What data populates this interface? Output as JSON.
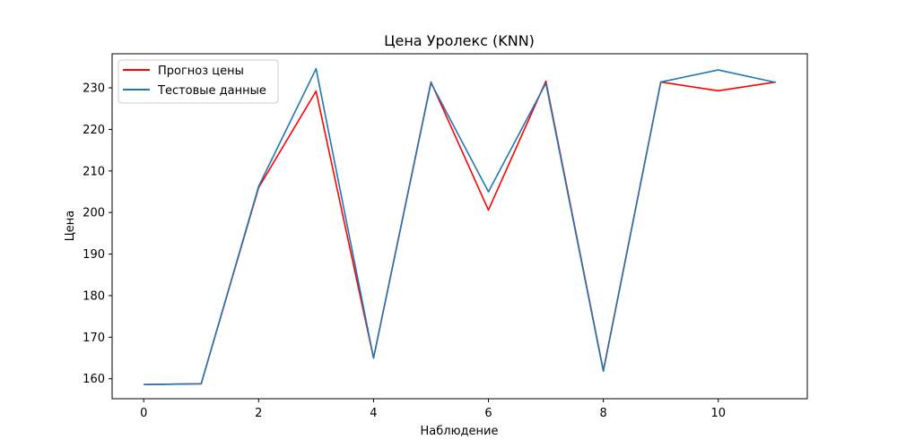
{
  "chart_data": {
    "type": "line",
    "title": "Цена Уролекс (KNN)",
    "xlabel": "Наблюдение",
    "ylabel": "Цена",
    "x": [
      0,
      1,
      2,
      3,
      4,
      5,
      6,
      7,
      8,
      9,
      10,
      11
    ],
    "xlim": [
      -0.55,
      11.55
    ],
    "ylim": [
      155.2,
      238.2
    ],
    "xticks": [
      0,
      2,
      4,
      6,
      8,
      10
    ],
    "yticks": [
      160,
      170,
      180,
      190,
      200,
      210,
      220,
      230
    ],
    "grid": false,
    "legend_position": "top-left",
    "series": [
      {
        "name": "Прогноз цены",
        "color": "#ff0000",
        "values": [
          158.6,
          158.8,
          206.0,
          229.2,
          165.0,
          231.4,
          200.6,
          231.6,
          162.0,
          231.4,
          229.3,
          231.4
        ]
      },
      {
        "name": "Тестовые данные",
        "color": "#1f77b4",
        "values": [
          158.6,
          158.8,
          206.3,
          234.6,
          165.0,
          231.2,
          205.0,
          231.1,
          161.8,
          231.4,
          234.3,
          231.3
        ]
      }
    ]
  }
}
